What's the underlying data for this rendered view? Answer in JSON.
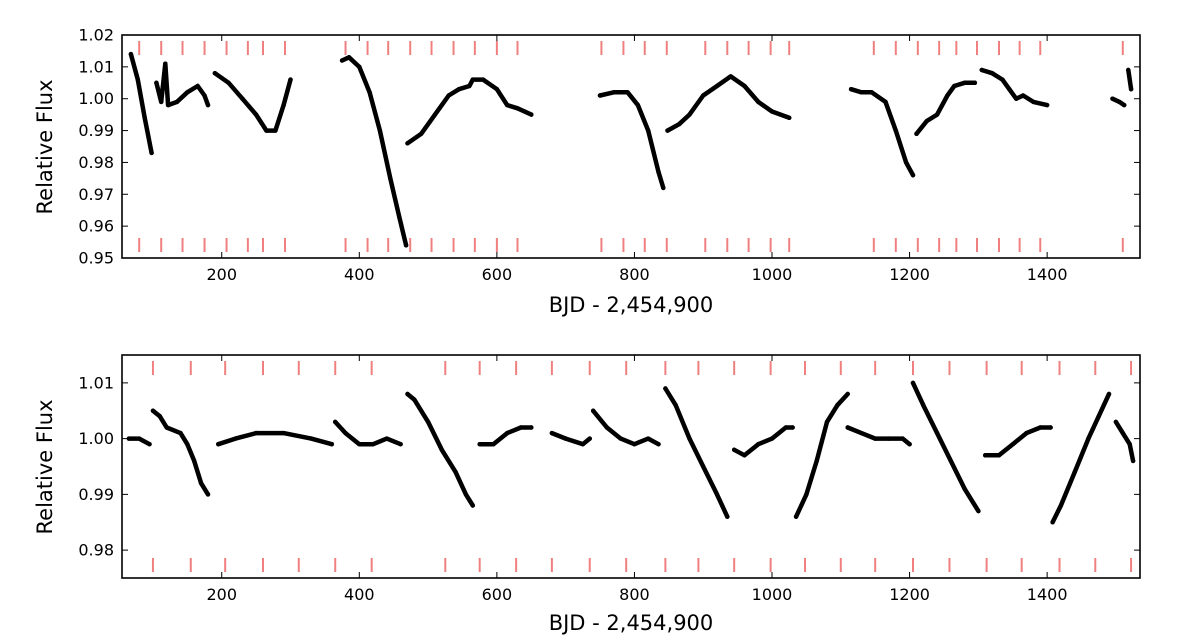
{
  "chart_data": [
    {
      "type": "scatter",
      "xlabel": "BJD - 2,454,900",
      "ylabel": "Relative Flux",
      "xlim": [
        55,
        1535
      ],
      "ylim": [
        0.95,
        1.02
      ],
      "xticks": [
        200,
        400,
        600,
        800,
        1000,
        1200,
        1400
      ],
      "xtick_labels": [
        "200",
        "400",
        "600",
        "800",
        "1000",
        "1200",
        "1400"
      ],
      "yticks": [
        0.95,
        0.96,
        0.97,
        0.98,
        0.99,
        1.0,
        1.01,
        1.02
      ],
      "ytick_labels": [
        "0.95",
        "0.96",
        "0.97",
        "0.98",
        "0.99",
        "1.00",
        "1.01",
        "1.02"
      ],
      "grid": false,
      "marker_color": "#000000",
      "transit_marker_color": "#f08080",
      "transit_times": [
        80,
        112,
        143,
        175,
        207,
        238,
        260,
        292,
        380,
        412,
        442,
        474,
        505,
        537,
        568,
        600,
        630,
        752,
        784,
        815,
        847,
        903,
        935,
        966,
        998,
        1025,
        1148,
        1180,
        1212,
        1243,
        1268,
        1298,
        1330,
        1360,
        1390,
        1510
      ],
      "segments": [
        {
          "points": [
            [
              68,
              1.014
            ],
            [
              78,
              1.006
            ],
            [
              88,
              0.994
            ],
            [
              98,
              0.983
            ]
          ]
        },
        {
          "points": [
            [
              105,
              1.005
            ],
            [
              112,
              0.999
            ],
            [
              118,
              1.011
            ],
            [
              122,
              0.998
            ],
            [
              135,
              0.999
            ],
            [
              150,
              1.002
            ],
            [
              165,
              1.004
            ],
            [
              175,
              1.001
            ],
            [
              180,
              0.998
            ]
          ]
        },
        {
          "points": [
            [
              190,
              1.008
            ],
            [
              210,
              1.005
            ],
            [
              230,
              1.0
            ],
            [
              250,
              0.995
            ],
            [
              265,
              0.99
            ],
            [
              278,
              0.99
            ],
            [
              290,
              0.998
            ],
            [
              300,
              1.006
            ]
          ]
        },
        {
          "points": [
            [
              375,
              1.012
            ],
            [
              385,
              1.013
            ],
            [
              400,
              1.01
            ],
            [
              415,
              1.002
            ],
            [
              430,
              0.99
            ],
            [
              445,
              0.975
            ],
            [
              458,
              0.963
            ],
            [
              468,
              0.954
            ]
          ]
        },
        {
          "points": [
            [
              470,
              0.986
            ],
            [
              490,
              0.989
            ],
            [
              510,
              0.995
            ],
            [
              530,
              1.001
            ],
            [
              545,
              1.003
            ],
            [
              560,
              1.004
            ],
            [
              565,
              1.006
            ],
            [
              580,
              1.006
            ],
            [
              600,
              1.003
            ],
            [
              615,
              0.998
            ],
            [
              630,
              0.997
            ],
            [
              650,
              0.995
            ]
          ]
        },
        {
          "points": [
            [
              750,
              1.001
            ],
            [
              770,
              1.002
            ],
            [
              790,
              1.002
            ],
            [
              805,
              0.998
            ],
            [
              820,
              0.99
            ],
            [
              835,
              0.977
            ],
            [
              842,
              0.972
            ]
          ]
        },
        {
          "points": [
            [
              848,
              0.99
            ],
            [
              865,
              0.992
            ],
            [
              880,
              0.995
            ],
            [
              900,
              1.001
            ],
            [
              920,
              1.004
            ],
            [
              940,
              1.007
            ],
            [
              960,
              1.004
            ],
            [
              980,
              0.999
            ],
            [
              1000,
              0.996
            ],
            [
              1025,
              0.994
            ]
          ]
        },
        {
          "points": [
            [
              1115,
              1.003
            ],
            [
              1130,
              1.002
            ],
            [
              1145,
              1.002
            ],
            [
              1165,
              0.999
            ],
            [
              1180,
              0.99
            ],
            [
              1195,
              0.98
            ],
            [
              1205,
              0.976
            ]
          ]
        },
        {
          "points": [
            [
              1210,
              0.989
            ],
            [
              1225,
              0.993
            ],
            [
              1240,
              0.995
            ],
            [
              1255,
              1.001
            ],
            [
              1265,
              1.004
            ],
            [
              1280,
              1.005
            ],
            [
              1295,
              1.005
            ]
          ]
        },
        {
          "points": [
            [
              1305,
              1.009
            ],
            [
              1320,
              1.008
            ],
            [
              1335,
              1.006
            ],
            [
              1345,
              1.003
            ],
            [
              1355,
              1.0
            ],
            [
              1365,
              1.001
            ],
            [
              1380,
              0.999
            ],
            [
              1400,
              0.998
            ]
          ]
        },
        {
          "points": [
            [
              1495,
              1.0
            ],
            [
              1505,
              0.999
            ],
            [
              1512,
              0.998
            ]
          ]
        },
        {
          "points": [
            [
              1518,
              1.009
            ],
            [
              1522,
              1.003
            ]
          ]
        }
      ]
    },
    {
      "type": "scatter",
      "xlabel": "BJD - 2,454,900",
      "ylabel": "Relative Flux",
      "xlim": [
        55,
        1535
      ],
      "ylim": [
        0.975,
        1.015
      ],
      "xticks": [
        200,
        400,
        600,
        800,
        1000,
        1200,
        1400
      ],
      "xtick_labels": [
        "200",
        "400",
        "600",
        "800",
        "1000",
        "1200",
        "1400"
      ],
      "yticks": [
        0.98,
        0.99,
        1.0,
        1.01
      ],
      "ytick_labels": [
        "0.98",
        "0.99",
        "1.00",
        "1.01"
      ],
      "grid": false,
      "marker_color": "#000000",
      "transit_marker_color": "#f08080",
      "transit_times": [
        100,
        155,
        205,
        260,
        312,
        365,
        418,
        525,
        575,
        628,
        680,
        735,
        788,
        845,
        893,
        945,
        998,
        1048,
        1100,
        1150,
        1205,
        1258,
        1312,
        1363,
        1418,
        1470,
        1522
      ],
      "segments": [
        {
          "points": [
            [
              65,
              1.0
            ],
            [
              80,
              1.0
            ],
            [
              95,
              0.999
            ]
          ]
        },
        {
          "points": [
            [
              100,
              1.005
            ],
            [
              110,
              1.004
            ],
            [
              120,
              1.002
            ],
            [
              140,
              1.001
            ],
            [
              150,
              0.999
            ],
            [
              160,
              0.996
            ],
            [
              170,
              0.992
            ],
            [
              180,
              0.99
            ]
          ]
        },
        {
          "points": [
            [
              195,
              0.999
            ],
            [
              220,
              1.0
            ],
            [
              250,
              1.001
            ],
            [
              290,
              1.001
            ],
            [
              330,
              1.0
            ],
            [
              360,
              0.999
            ]
          ]
        },
        {
          "points": [
            [
              365,
              1.003
            ],
            [
              380,
              1.001
            ],
            [
              400,
              0.999
            ],
            [
              420,
              0.999
            ],
            [
              440,
              1.0
            ],
            [
              460,
              0.999
            ]
          ]
        },
        {
          "points": [
            [
              470,
              1.008
            ],
            [
              480,
              1.007
            ],
            [
              500,
              1.003
            ],
            [
              520,
              0.998
            ],
            [
              540,
              0.994
            ],
            [
              555,
              0.99
            ],
            [
              565,
              0.988
            ]
          ]
        },
        {
          "points": [
            [
              575,
              0.999
            ],
            [
              595,
              0.999
            ],
            [
              615,
              1.001
            ],
            [
              635,
              1.002
            ],
            [
              650,
              1.002
            ]
          ]
        },
        {
          "points": [
            [
              680,
              1.001
            ],
            [
              700,
              1.0
            ],
            [
              725,
              0.999
            ],
            [
              735,
              1.0
            ]
          ]
        },
        {
          "points": [
            [
              740,
              1.005
            ],
            [
              760,
              1.002
            ],
            [
              780,
              1.0
            ],
            [
              800,
              0.999
            ],
            [
              820,
              1.0
            ],
            [
              835,
              0.999
            ]
          ]
        },
        {
          "points": [
            [
              845,
              1.009
            ],
            [
              860,
              1.006
            ],
            [
              880,
              1.0
            ],
            [
              900,
              0.995
            ],
            [
              920,
              0.99
            ],
            [
              935,
              0.986
            ]
          ]
        },
        {
          "points": [
            [
              945,
              0.998
            ],
            [
              960,
              0.997
            ],
            [
              980,
              0.999
            ],
            [
              1000,
              1.0
            ],
            [
              1020,
              1.002
            ],
            [
              1030,
              1.002
            ]
          ]
        },
        {
          "points": [
            [
              1035,
              0.986
            ],
            [
              1050,
              0.99
            ],
            [
              1065,
              0.996
            ],
            [
              1080,
              1.003
            ],
            [
              1095,
              1.006
            ],
            [
              1110,
              1.008
            ]
          ]
        },
        {
          "points": [
            [
              1110,
              1.002
            ],
            [
              1130,
              1.001
            ],
            [
              1150,
              1.0
            ],
            [
              1170,
              1.0
            ],
            [
              1190,
              1.0
            ],
            [
              1200,
              0.999
            ]
          ]
        },
        {
          "points": [
            [
              1205,
              1.01
            ],
            [
              1220,
              1.006
            ],
            [
              1240,
              1.001
            ],
            [
              1260,
              0.996
            ],
            [
              1280,
              0.991
            ],
            [
              1300,
              0.987
            ]
          ]
        },
        {
          "points": [
            [
              1310,
              0.997
            ],
            [
              1330,
              0.997
            ],
            [
              1350,
              0.999
            ],
            [
              1370,
              1.001
            ],
            [
              1390,
              1.002
            ],
            [
              1405,
              1.002
            ]
          ]
        },
        {
          "points": [
            [
              1408,
              0.985
            ],
            [
              1420,
              0.988
            ],
            [
              1440,
              0.994
            ],
            [
              1460,
              1.0
            ],
            [
              1475,
              1.004
            ],
            [
              1490,
              1.008
            ]
          ]
        },
        {
          "points": [
            [
              1500,
              1.003
            ],
            [
              1510,
              1.001
            ],
            [
              1520,
              0.999
            ],
            [
              1525,
              0.996
            ]
          ]
        }
      ]
    }
  ]
}
